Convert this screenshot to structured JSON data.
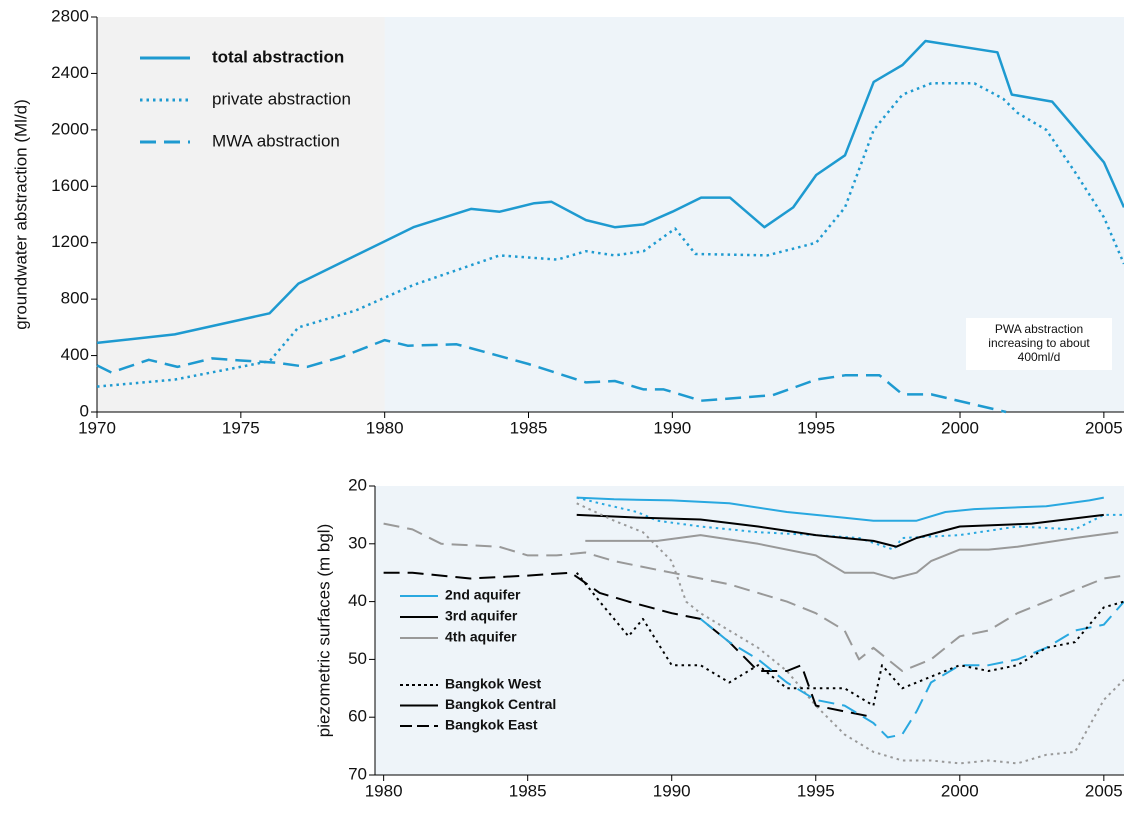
{
  "chart_data": [
    {
      "type": "line",
      "y_label": "groundwater abstraction (Ml/d)",
      "xlim": [
        1970,
        2005.7
      ],
      "xticks": [
        1970,
        1975,
        1980,
        1985,
        1990,
        1995,
        2000,
        2005
      ],
      "ylim": [
        0,
        2800
      ],
      "yticks": [
        0,
        400,
        800,
        1200,
        1600,
        2000,
        2400,
        2800
      ],
      "shaded_until": 1980,
      "legend": "top-left",
      "annotation": [
        "PWA abstraction",
        "increasing to about",
        "400ml/d"
      ],
      "series": [
        {
          "name": "total abstraction",
          "color": "#1e9ad0",
          "dash": "solid",
          "bold": true,
          "x": [
            1970,
            1972.7,
            1976,
            1977,
            1979,
            1981,
            1983,
            1984,
            1985.2,
            1985.8,
            1987,
            1988,
            1989,
            1990,
            1991,
            1992,
            1993.2,
            1994.2,
            1995,
            1996,
            1997,
            1998,
            1998.8,
            2001.3,
            2001.8,
            2003.2,
            2005,
            2005.7
          ],
          "values": [
            490,
            550,
            700,
            910,
            1110,
            1310,
            1440,
            1420,
            1480,
            1490,
            1360,
            1310,
            1330,
            1420,
            1520,
            1520,
            1310,
            1450,
            1680,
            1820,
            2340,
            2460,
            2630,
            2550,
            2250,
            2200,
            1770,
            1450
          ]
        },
        {
          "name": "private abstraction",
          "color": "#1e9ad0",
          "dash": "dotted",
          "x": [
            1970,
            1972.7,
            1976,
            1977,
            1979,
            1981,
            1984,
            1986,
            1987,
            1988,
            1989,
            1990.1,
            1990.8,
            1993.3,
            1995,
            1996,
            1997,
            1998,
            1999,
            2000.5,
            2001.5,
            2002,
            2003,
            2004,
            2005,
            2005.7
          ],
          "values": [
            180,
            230,
            360,
            600,
            720,
            900,
            1110,
            1080,
            1140,
            1110,
            1140,
            1300,
            1120,
            1110,
            1200,
            1450,
            2000,
            2250,
            2330,
            2330,
            2220,
            2120,
            2000,
            1700,
            1380,
            1050
          ]
        },
        {
          "name": "MWA abstraction",
          "color": "#1e9ad0",
          "dash": "dashed",
          "x": [
            1970,
            1970.5,
            1971.8,
            1972.8,
            1974,
            1975,
            1976.2,
            1977.3,
            1978.5,
            1980,
            1980.8,
            1982.5,
            1985,
            1987,
            1988,
            1989,
            1989.7,
            1991,
            1993.5,
            1995,
            1996,
            1997.2,
            1998,
            1999,
            2001.6
          ],
          "values": [
            330,
            280,
            370,
            320,
            380,
            365,
            350,
            320,
            390,
            510,
            470,
            480,
            340,
            210,
            220,
            160,
            160,
            80,
            120,
            230,
            260,
            260,
            125,
            125,
            0
          ]
        }
      ]
    },
    {
      "type": "line",
      "y_label": "piezometric surfaces  (m bgl)",
      "xlim": [
        1979.7,
        2005.7
      ],
      "xticks": [
        1980,
        1985,
        1990,
        1995,
        2000,
        2005
      ],
      "ylim": [
        70,
        20
      ],
      "yticks": [
        20,
        30,
        40,
        50,
        60,
        70
      ],
      "legend": "bottom-left",
      "aquifers": [
        {
          "name": "2nd aquifer",
          "color": "#29a8e0"
        },
        {
          "name": "3rd aquifer",
          "color": "#000000"
        },
        {
          "name": "4th aquifer",
          "color": "#999999"
        }
      ],
      "locations": [
        {
          "name": "Bangkok West",
          "dash": "dotted"
        },
        {
          "name": "Bangkok Central",
          "dash": "solid"
        },
        {
          "name": "Bangkok East",
          "dash": "dashed"
        }
      ],
      "series": [
        {
          "aquifer": 0,
          "location": 1,
          "x": [
            1986.7,
            1988,
            1990,
            1992,
            1994,
            1996,
            1997,
            1998.5,
            1999.5,
            2000.5,
            2003,
            2004.5,
            2005
          ],
          "values": [
            22,
            22.3,
            22.5,
            23,
            24.5,
            25.5,
            26,
            26,
            24.5,
            24,
            23.5,
            22.5,
            22
          ]
        },
        {
          "aquifer": 0,
          "location": 0,
          "x": [
            1986.7,
            1987.5,
            1988.8,
            1989.5,
            1991,
            1993,
            1995,
            1996.5,
            1997.7,
            1998,
            2000,
            2002,
            2004,
            2005,
            2005.7
          ],
          "values": [
            22,
            23,
            24.5,
            26,
            27,
            28,
            28.5,
            29,
            31,
            29,
            28.5,
            27,
            27.5,
            25,
            25
          ]
        },
        {
          "aquifer": 1,
          "location": 1,
          "x": [
            1986.7,
            1989,
            1991,
            1993,
            1995,
            1997,
            1997.8,
            1998.5,
            2000,
            2002.5,
            2005
          ],
          "values": [
            25,
            25.5,
            25.8,
            27,
            28.5,
            29.5,
            30.5,
            29,
            27,
            26.5,
            25
          ]
        },
        {
          "aquifer": 2,
          "location": 1,
          "x": [
            1987,
            1989.5,
            1991,
            1993,
            1995,
            1996,
            1997,
            1997.7,
            1998.5,
            1999,
            2000,
            2001,
            2002,
            2004,
            2005.5
          ],
          "values": [
            29.5,
            29.5,
            28.5,
            30,
            32,
            35,
            35,
            36,
            35,
            33,
            31,
            31,
            30.5,
            29,
            28
          ]
        },
        {
          "aquifer": 2,
          "location": 2,
          "x": [
            1980,
            1981,
            1982,
            1984,
            1985,
            1986,
            1987,
            1988,
            1990,
            1992,
            1994,
            1995,
            1996,
            1996.5,
            1997,
            1998,
            1999,
            2000,
            2001,
            2002,
            2003,
            2004,
            2005,
            2005.7
          ],
          "values": [
            26.5,
            27.5,
            30,
            30.5,
            32,
            32,
            31.5,
            33,
            35,
            37,
            40,
            42,
            45,
            50,
            48,
            52,
            50,
            46,
            45,
            42,
            40,
            38,
            36,
            35.5
          ]
        },
        {
          "aquifer": 2,
          "location": 0,
          "x": [
            1986.7,
            1988,
            1989,
            1990,
            1990.5,
            1991,
            1992,
            1993,
            1994,
            1995,
            1996,
            1997,
            1998,
            1999,
            2000,
            2001,
            2002,
            2003,
            2004,
            2005,
            2005.7
          ],
          "values": [
            23,
            26,
            28,
            33,
            40,
            42,
            45,
            48,
            52,
            58,
            63,
            66,
            67.5,
            67.5,
            68,
            67.5,
            68,
            66.5,
            66,
            57,
            53.5
          ]
        },
        {
          "aquifer": 1,
          "location": 2,
          "x": [
            1980,
            1981,
            1983,
            1985,
            1986.5,
            1987.5,
            1988.5,
            1990,
            1991,
            1992,
            1993,
            1994,
            1994.5,
            1995,
            1996,
            1997
          ],
          "values": [
            35,
            35,
            36,
            35.5,
            35,
            38.5,
            40,
            42,
            43,
            47,
            52,
            52,
            51,
            58,
            59,
            60
          ]
        },
        {
          "aquifer": 0,
          "location": 2,
          "x": [
            1991,
            1992,
            1993,
            1994,
            1995,
            1996,
            1997,
            1997.5,
            1998,
            1998.5,
            1999,
            2000,
            2001,
            2002,
            2003,
            2004,
            2005,
            2005.7
          ],
          "values": [
            43,
            47,
            50,
            54,
            57,
            58,
            61,
            63.5,
            63,
            59,
            54,
            51,
            51,
            50,
            48,
            45,
            44,
            40
          ]
        },
        {
          "aquifer": 1,
          "location": 0,
          "x": [
            1986.7,
            1987.5,
            1988.5,
            1989,
            1990,
            1991,
            1992,
            1993,
            1994,
            1995,
            1996,
            1997,
            1997.3,
            1998,
            1999,
            2000,
            2001,
            2002,
            2003,
            2004,
            2005,
            2005.7
          ],
          "values": [
            35,
            40,
            46,
            43,
            51,
            51,
            54,
            51,
            55,
            55,
            55,
            58,
            51,
            55,
            53,
            51,
            52,
            51,
            48,
            47,
            41,
            40
          ]
        }
      ]
    }
  ]
}
